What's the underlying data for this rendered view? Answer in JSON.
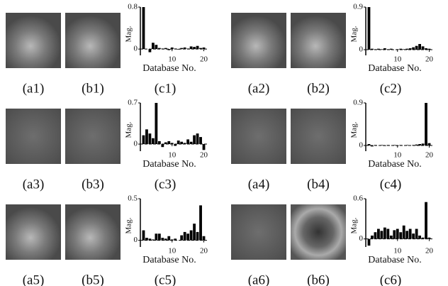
{
  "panels": [
    {
      "a": "(a1)",
      "b": "(b1)"
    },
    {
      "a": "(a2)",
      "b": "(b2)"
    },
    {
      "a": "(a3)",
      "b": "(b3)"
    },
    {
      "a": "(a4)",
      "b": "(b4)"
    },
    {
      "a": "(a5)",
      "b": "(b5)"
    },
    {
      "a": "(a6)",
      "b": "(b6)"
    }
  ],
  "chart_data": [
    {
      "type": "bar",
      "title": "(c1)",
      "x_label": "Database No.",
      "y_label": "Mag.",
      "color": "#000000",
      "x": [
        1,
        2,
        3,
        4,
        5,
        6,
        7,
        8,
        9,
        10,
        11,
        12,
        13,
        14,
        15,
        16,
        17,
        18,
        19,
        20
      ],
      "values": [
        0.8,
        0.0,
        -0.06,
        0.12,
        0.08,
        0.02,
        0.01,
        0.02,
        -0.02,
        0.03,
        0.01,
        -0.01,
        0.02,
        0.03,
        0.01,
        0.05,
        0.04,
        0.06,
        0.02,
        0.03
      ],
      "xlim": [
        0,
        21
      ],
      "xticks": [
        10,
        20
      ],
      "ylim": [
        -0.12,
        0.8
      ],
      "yticks": [
        0,
        0.8
      ]
    },
    {
      "type": "bar",
      "title": "(c2)",
      "x_label": "Database No.",
      "y_label": "Mag.",
      "color": "#000000",
      "x": [
        1,
        2,
        3,
        4,
        5,
        6,
        7,
        8,
        9,
        10,
        11,
        12,
        13,
        14,
        15,
        16,
        17,
        18,
        19,
        20
      ],
      "values": [
        0.9,
        0.02,
        0.01,
        0.02,
        0.01,
        0.03,
        0.01,
        0.02,
        0.0,
        0.01,
        0.02,
        0.01,
        0.02,
        0.03,
        0.05,
        0.08,
        0.12,
        0.07,
        0.03,
        0.02
      ],
      "xlim": [
        0,
        21
      ],
      "xticks": [
        10,
        20
      ],
      "ylim": [
        -0.12,
        0.9
      ],
      "yticks": [
        0,
        0.9
      ]
    },
    {
      "type": "bar",
      "title": "(c3)",
      "x_label": "Database No.",
      "y_label": "Mag.",
      "color": "#000000",
      "x": [
        1,
        2,
        3,
        4,
        5,
        6,
        7,
        8,
        9,
        10,
        11,
        12,
        13,
        14,
        15,
        16,
        17,
        18,
        19,
        20
      ],
      "values": [
        0.15,
        0.25,
        0.18,
        0.1,
        0.7,
        0.05,
        -0.05,
        0.03,
        0.05,
        0.02,
        -0.03,
        0.06,
        0.04,
        0.02,
        0.08,
        0.04,
        0.15,
        0.18,
        0.12,
        -0.1
      ],
      "xlim": [
        0,
        21
      ],
      "xticks": [
        10,
        20
      ],
      "ylim": [
        -0.12,
        0.7
      ],
      "yticks": [
        0,
        0.7
      ]
    },
    {
      "type": "bar",
      "title": "(c4)",
      "x_label": "Database No.",
      "y_label": "Mag.",
      "color": "#000000",
      "x": [
        1,
        2,
        3,
        4,
        5,
        6,
        7,
        8,
        9,
        10,
        11,
        12,
        13,
        14,
        15,
        16,
        17,
        18,
        19,
        20
      ],
      "values": [
        0.03,
        -0.02,
        0.01,
        0.0,
        0.01,
        -0.01,
        0.01,
        0.0,
        0.01,
        -0.01,
        0.01,
        0.0,
        0.01,
        0.0,
        0.01,
        0.02,
        0.03,
        0.04,
        0.9,
        0.05
      ],
      "xlim": [
        0,
        21
      ],
      "xticks": [
        10,
        20
      ],
      "ylim": [
        -0.12,
        0.9
      ],
      "yticks": [
        0,
        0.9
      ]
    },
    {
      "type": "bar",
      "title": "(c5)",
      "x_label": "Database No.",
      "y_label": "Mag.",
      "color": "#000000",
      "x": [
        1,
        2,
        3,
        4,
        5,
        6,
        7,
        8,
        9,
        10,
        11,
        12,
        13,
        14,
        15,
        16,
        17,
        18,
        19,
        20
      ],
      "values": [
        0.12,
        0.03,
        0.02,
        0.01,
        0.08,
        0.08,
        0.03,
        0.02,
        0.05,
        0.01,
        0.02,
        0.0,
        0.06,
        0.1,
        0.08,
        0.12,
        0.2,
        0.1,
        0.42,
        0.05
      ],
      "xlim": [
        0,
        21
      ],
      "xticks": [
        10,
        20
      ],
      "ylim": [
        -0.08,
        0.5
      ],
      "yticks": [
        0,
        0.5
      ]
    },
    {
      "type": "bar",
      "title": "(c6)",
      "x_label": "Database No.",
      "y_label": "Mag.",
      "color": "#000000",
      "x": [
        1,
        2,
        3,
        4,
        5,
        6,
        7,
        8,
        9,
        10,
        11,
        12,
        13,
        14,
        15,
        16,
        17,
        18,
        19,
        20
      ],
      "values": [
        -0.1,
        0.05,
        0.1,
        0.15,
        0.12,
        0.17,
        0.15,
        0.05,
        0.13,
        0.15,
        0.1,
        0.2,
        0.12,
        0.15,
        0.08,
        0.15,
        0.05,
        0.02,
        0.55,
        0.02
      ],
      "xlim": [
        0,
        21
      ],
      "xticks": [
        10,
        20
      ],
      "ylim": [
        -0.12,
        0.6
      ],
      "yticks": [
        0,
        0.6
      ]
    }
  ]
}
